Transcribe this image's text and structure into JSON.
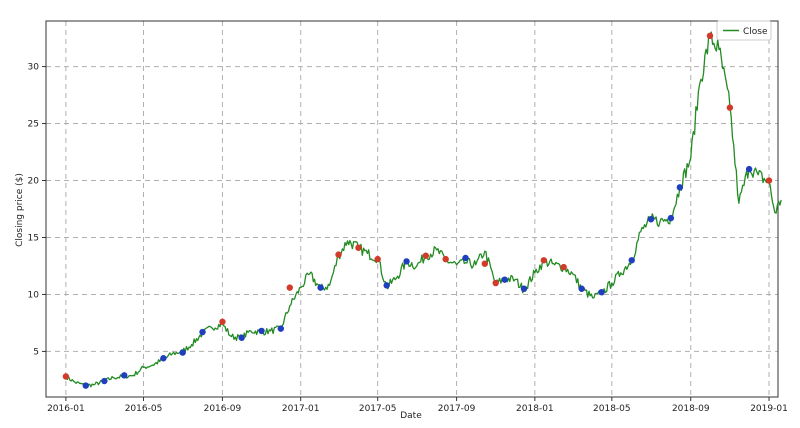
{
  "chart_data": {
    "type": "line",
    "title": "",
    "xlabel": "Date",
    "ylabel": "Closing price ($)",
    "legend": {
      "position": "top-right",
      "entries": [
        "Close"
      ]
    },
    "grid": true,
    "xlim": [
      "2015-12-01",
      "2019-01-15"
    ],
    "ylim": [
      1,
      34
    ],
    "x_ticks": [
      "2016-01",
      "2016-05",
      "2016-09",
      "2017-01",
      "2017-05",
      "2017-09",
      "2018-01",
      "2018-05",
      "2018-09",
      "2019-01"
    ],
    "y_ticks": [
      5,
      10,
      15,
      20,
      25,
      30
    ],
    "colors": {
      "line": "#228b22",
      "buy_marker": "#1f3fbf",
      "sell_marker": "#d23a2a",
      "grid": "#b0b0b0"
    },
    "series": [
      {
        "name": "Close",
        "points": [
          [
            "2016-01-01",
            2.8
          ],
          [
            "2016-01-15",
            2.3
          ],
          [
            "2016-02-01",
            2.0
          ],
          [
            "2016-02-15",
            2.1
          ],
          [
            "2016-03-01",
            2.4
          ],
          [
            "2016-03-15",
            2.7
          ],
          [
            "2016-04-01",
            2.8
          ],
          [
            "2016-04-15",
            2.9
          ],
          [
            "2016-05-01",
            3.6
          ],
          [
            "2016-05-15",
            3.8
          ],
          [
            "2016-06-01",
            4.3
          ],
          [
            "2016-06-15",
            4.8
          ],
          [
            "2016-07-01",
            5.0
          ],
          [
            "2016-07-15",
            5.6
          ],
          [
            "2016-08-01",
            6.6
          ],
          [
            "2016-08-15",
            7.1
          ],
          [
            "2016-09-01",
            7.4
          ],
          [
            "2016-09-15",
            6.3
          ],
          [
            "2016-10-01",
            6.2
          ],
          [
            "2016-10-15",
            6.8
          ],
          [
            "2016-11-01",
            6.7
          ],
          [
            "2016-11-15",
            6.8
          ],
          [
            "2016-12-01",
            7.0
          ],
          [
            "2016-12-15",
            9.0
          ],
          [
            "2017-01-01",
            10.6
          ],
          [
            "2017-01-15",
            11.8
          ],
          [
            "2017-02-01",
            10.5
          ],
          [
            "2017-02-15",
            10.8
          ],
          [
            "2017-03-01",
            13.4
          ],
          [
            "2017-03-15",
            14.7
          ],
          [
            "2017-04-01",
            14.1
          ],
          [
            "2017-04-15",
            13.6
          ],
          [
            "2017-05-01",
            13.2
          ],
          [
            "2017-05-15",
            10.6
          ],
          [
            "2017-06-01",
            11.6
          ],
          [
            "2017-06-15",
            12.9
          ],
          [
            "2017-07-01",
            12.5
          ],
          [
            "2017-07-15",
            13.4
          ],
          [
            "2017-08-01",
            13.9
          ],
          [
            "2017-08-15",
            13.0
          ],
          [
            "2017-09-01",
            12.6
          ],
          [
            "2017-09-15",
            12.8
          ],
          [
            "2017-10-01",
            12.6
          ],
          [
            "2017-10-15",
            13.8
          ],
          [
            "2017-11-01",
            10.9
          ],
          [
            "2017-11-15",
            11.4
          ],
          [
            "2017-12-01",
            11.3
          ],
          [
            "2017-12-15",
            10.4
          ],
          [
            "2018-01-01",
            11.9
          ],
          [
            "2018-01-15",
            12.9
          ],
          [
            "2018-02-01",
            12.6
          ],
          [
            "2018-02-15",
            12.4
          ],
          [
            "2018-03-01",
            11.8
          ],
          [
            "2018-03-15",
            10.5
          ],
          [
            "2018-04-01",
            9.7
          ],
          [
            "2018-04-15",
            10.1
          ],
          [
            "2018-05-01",
            11.0
          ],
          [
            "2018-05-15",
            11.9
          ],
          [
            "2018-06-01",
            13.0
          ],
          [
            "2018-06-15",
            15.5
          ],
          [
            "2018-07-01",
            16.6
          ],
          [
            "2018-07-15",
            16.4
          ],
          [
            "2018-08-01",
            16.7
          ],
          [
            "2018-08-15",
            19.4
          ],
          [
            "2018-09-01",
            22.0
          ],
          [
            "2018-09-15",
            28.5
          ],
          [
            "2018-10-01",
            32.6
          ],
          [
            "2018-10-15",
            31.5
          ],
          [
            "2018-11-01",
            26.5
          ],
          [
            "2018-11-15",
            18.0
          ],
          [
            "2018-12-01",
            21.2
          ],
          [
            "2018-12-15",
            20.5
          ],
          [
            "2019-01-01",
            19.8
          ],
          [
            "2019-01-10",
            17.2
          ],
          [
            "2019-01-20",
            18.3
          ]
        ]
      }
    ],
    "markers": {
      "sell": [
        [
          "2016-01-01",
          2.8
        ],
        [
          "2016-09-01",
          7.6
        ],
        [
          "2016-12-15",
          10.6
        ],
        [
          "2017-03-01",
          13.5
        ],
        [
          "2017-04-01",
          14.1
        ],
        [
          "2017-05-01",
          13.1
        ],
        [
          "2017-07-15",
          13.4
        ],
        [
          "2017-08-15",
          13.1
        ],
        [
          "2017-10-15",
          12.7
        ],
        [
          "2017-11-01",
          11.0
        ],
        [
          "2018-01-15",
          13.0
        ],
        [
          "2018-02-15",
          12.4
        ],
        [
          "2018-10-01",
          32.7
        ],
        [
          "2018-11-01",
          26.4
        ],
        [
          "2019-01-01",
          20.0
        ]
      ],
      "buy": [
        [
          "2016-02-01",
          2.0
        ],
        [
          "2016-03-01",
          2.4
        ],
        [
          "2016-04-01",
          2.9
        ],
        [
          "2016-06-01",
          4.4
        ],
        [
          "2016-07-01",
          4.9
        ],
        [
          "2016-08-01",
          6.7
        ],
        [
          "2016-10-01",
          6.2
        ],
        [
          "2016-11-01",
          6.8
        ],
        [
          "2016-12-01",
          7.0
        ],
        [
          "2017-02-01",
          10.6
        ],
        [
          "2017-05-15",
          10.8
        ],
        [
          "2017-06-15",
          12.9
        ],
        [
          "2017-09-15",
          13.2
        ],
        [
          "2017-11-15",
          11.3
        ],
        [
          "2017-12-15",
          10.5
        ],
        [
          "2018-03-15",
          10.5
        ],
        [
          "2018-04-15",
          10.2
        ],
        [
          "2018-06-01",
          13.0
        ],
        [
          "2018-07-01",
          16.6
        ],
        [
          "2018-08-01",
          16.7
        ],
        [
          "2018-08-15",
          19.4
        ],
        [
          "2018-12-01",
          21.0
        ]
      ]
    }
  }
}
